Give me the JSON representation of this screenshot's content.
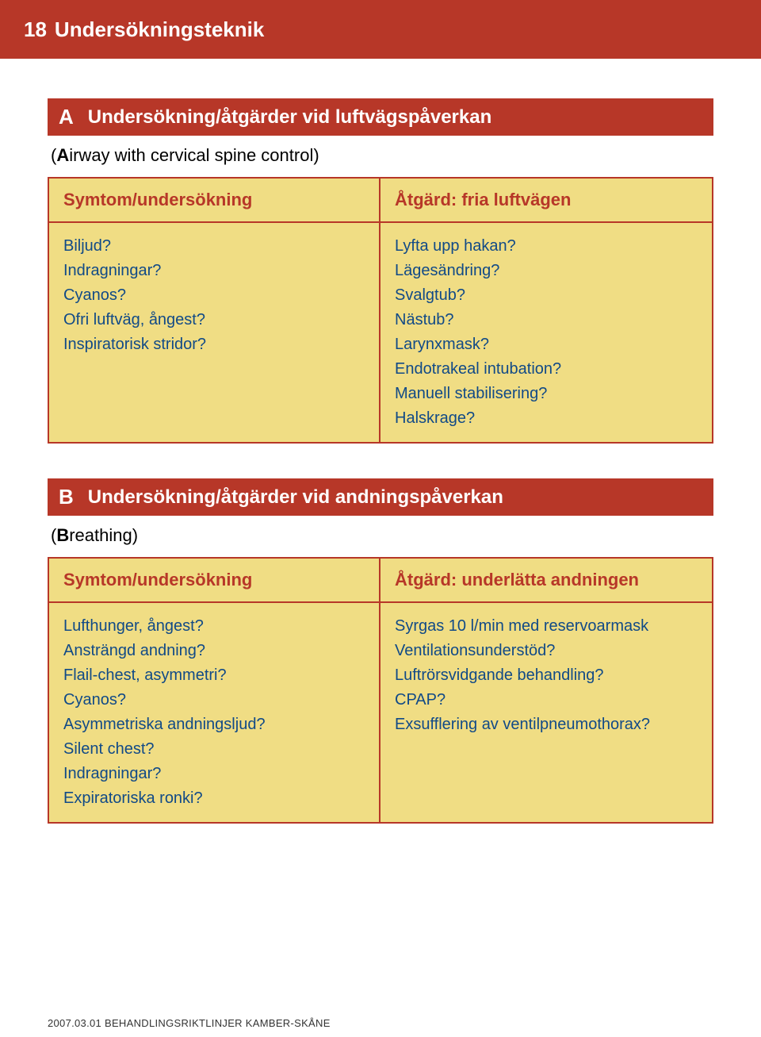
{
  "colors": {
    "header_bg": "#b73728",
    "header_text": "#ffffff",
    "table_border": "#b73728",
    "table_bg": "#f0dd84",
    "th_text": "#b73728",
    "td_text": "#114a87",
    "body_bg": "#ffffff"
  },
  "typography": {
    "header_fontsize": 26,
    "section_fontsize": 24,
    "subtitle_fontsize": 22,
    "th_fontsize": 22,
    "td_fontsize": 20,
    "footer_fontsize": 13
  },
  "page_header": {
    "number": "18",
    "title": "Undersökningsteknik"
  },
  "sectionA": {
    "letter": "A",
    "title": "Undersökning/åtgärder vid luftvägspåverkan",
    "subtitle_prefix": "(",
    "subtitle_bold": "A",
    "subtitle_rest": "irway with cervical spine control)",
    "col1_header": "Symtom/undersökning",
    "col2_header": "Åtgärd: fria luftvägen",
    "col1_items": [
      "Biljud?",
      "Indragningar?",
      "Cyanos?",
      "Ofri luftväg, ångest?",
      "Inspiratorisk stridor?"
    ],
    "col2_items": [
      "Lyfta upp hakan?",
      "Lägesändring?",
      "Svalgtub?",
      "Nästub?",
      "Larynxmask?",
      "Endotrakeal intubation?",
      "Manuell stabilisering?",
      "Halskrage?"
    ]
  },
  "sectionB": {
    "letter": "B",
    "title": "Undersökning/åtgärder vid andningspåverkan",
    "subtitle_prefix": "(",
    "subtitle_bold": "B",
    "subtitle_rest": "reathing)",
    "col1_header": "Symtom/undersökning",
    "col2_header": "Åtgärd: underlätta andningen",
    "col1_items": [
      "Lufthunger, ångest?",
      "Ansträngd andning?",
      "Flail-chest, asymmetri?",
      "Cyanos?",
      "Asymmetriska andningsljud?",
      "Silent chest?",
      "Indragningar?",
      "Expiratoriska ronki?"
    ],
    "col2_items": [
      "Syrgas 10 l/min med reservoarmask",
      "Ventilationsunderstöd?",
      "Luftrörsvidgande behandling?",
      "CPAP?",
      "Exsufflering av ventilpneumothorax?"
    ]
  },
  "footer": "2007.03.01 BEHANDLINGSRIKTLINJER KAMBER-SKÅNE"
}
